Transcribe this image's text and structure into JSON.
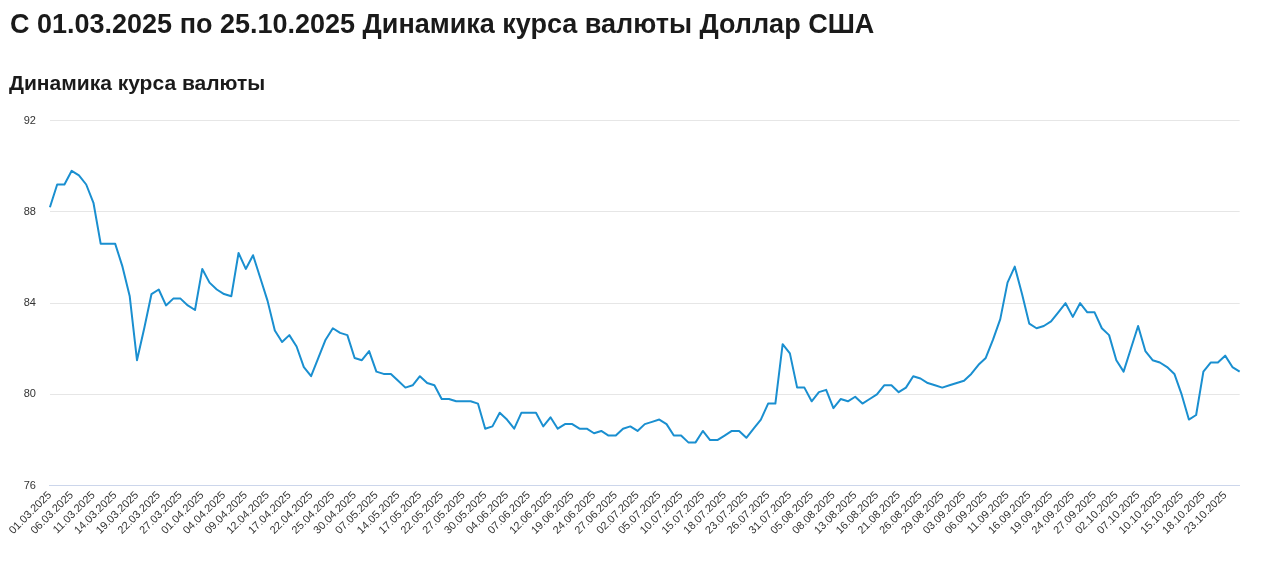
{
  "chart_data": {
    "type": "line",
    "title": "С 01.03.2025 по 25.10.2025 Динамика курса валюты Доллар США",
    "subtitle": "Динамика курса валюты",
    "categories": [
      "01.03.2025",
      null,
      null,
      "06.03.2025",
      null,
      null,
      "11.03.2025",
      null,
      null,
      "14.03.2025",
      null,
      null,
      "19.03.2025",
      null,
      null,
      "22.03.2025",
      null,
      null,
      "27.03.2025",
      null,
      null,
      "01.04.2025",
      null,
      null,
      "04.04.2025",
      null,
      null,
      "09.04.2025",
      null,
      null,
      "12.04.2025",
      null,
      null,
      "17.04.2025",
      null,
      null,
      "22.04.2025",
      null,
      null,
      "25.04.2025",
      null,
      null,
      "30.04.2025",
      null,
      null,
      "07.05.2025",
      null,
      null,
      "14.05.2025",
      null,
      null,
      "17.05.2025",
      null,
      null,
      "22.05.2025",
      null,
      null,
      "27.05.2025",
      null,
      null,
      "30.05.2025",
      null,
      null,
      "04.06.2025",
      null,
      null,
      "07.06.2025",
      null,
      null,
      "12.06.2025",
      null,
      null,
      "19.06.2025",
      null,
      null,
      "24.06.2025",
      null,
      null,
      "27.06.2025",
      null,
      null,
      "02.07.2025",
      null,
      null,
      "05.07.2025",
      null,
      null,
      "10.07.2025",
      null,
      null,
      "15.07.2025",
      null,
      null,
      "18.07.2025",
      null,
      null,
      "23.07.2025",
      null,
      null,
      "26.07.2025",
      null,
      null,
      "31.07.2025",
      null,
      null,
      "05.08.2025",
      null,
      null,
      "08.08.2025",
      null,
      null,
      "13.08.2025",
      null,
      null,
      "16.08.2025",
      null,
      null,
      "21.08.2025",
      null,
      null,
      "26.08.2025",
      null,
      null,
      "29.08.2025",
      null,
      null,
      "03.09.2025",
      null,
      null,
      "06.09.2025",
      null,
      null,
      "11.09.2025",
      null,
      null,
      "16.09.2025",
      null,
      null,
      "19.09.2025",
      null,
      null,
      "24.09.2025",
      null,
      null,
      "27.09.2025",
      null,
      null,
      "02.10.2025",
      null,
      null,
      "07.10.2025",
      null,
      null,
      "10.10.2025",
      null,
      null,
      "15.10.2025",
      null,
      null,
      "18.10.2025",
      null,
      null,
      "23.10.2025",
      null,
      null
    ],
    "series": [
      {
        "color": "#1a8fd0",
        "values": [
          88.2,
          89.2,
          89.2,
          89.8,
          89.6,
          89.2,
          88.4,
          86.6,
          86.6,
          86.6,
          85.6,
          84.3,
          81.5,
          82.9,
          84.4,
          84.6,
          83.9,
          84.2,
          84.2,
          83.9,
          83.7,
          85.5,
          84.9,
          84.6,
          84.4,
          84.3,
          86.2,
          85.5,
          86.1,
          85.1,
          84.1,
          82.8,
          82.3,
          82.6,
          82.1,
          81.2,
          80.8,
          81.6,
          82.4,
          82.9,
          82.7,
          82.6,
          81.6,
          81.5,
          81.9,
          81.0,
          80.9,
          80.9,
          80.6,
          80.3,
          80.4,
          80.8,
          80.5,
          80.4,
          79.8,
          79.8,
          79.7,
          79.7,
          79.7,
          79.6,
          78.5,
          78.6,
          79.2,
          78.9,
          78.5,
          79.2,
          79.2,
          79.2,
          78.6,
          79.0,
          78.5,
          78.7,
          78.7,
          78.5,
          78.5,
          78.3,
          78.4,
          78.2,
          78.2,
          78.5,
          78.6,
          78.4,
          78.7,
          78.8,
          78.9,
          78.7,
          78.2,
          78.2,
          77.9,
          77.9,
          78.4,
          78.0,
          78.0,
          78.2,
          78.4,
          78.4,
          78.1,
          78.5,
          78.9,
          79.6,
          79.6,
          82.2,
          81.8,
          80.3,
          80.3,
          79.7,
          80.1,
          80.2,
          79.4,
          79.8,
          79.7,
          79.9,
          79.6,
          79.8,
          80.0,
          80.4,
          80.4,
          80.1,
          80.3,
          80.8,
          80.7,
          80.5,
          80.4,
          80.3,
          80.4,
          80.5,
          80.6,
          80.9,
          81.3,
          81.6,
          82.4,
          83.3,
          84.9,
          85.6,
          84.4,
          83.1,
          82.9,
          83.0,
          83.2,
          83.6,
          84.0,
          83.4,
          84.0,
          83.6,
          83.6,
          82.9,
          82.6,
          81.5,
          81.0,
          82.0,
          83.0,
          81.9,
          81.5,
          81.4,
          81.2,
          80.9,
          80.0,
          78.9,
          79.1,
          81.0,
          81.4,
          81.4,
          81.7,
          81.2,
          81.0
        ]
      }
    ],
    "ylim": [
      76,
      92
    ],
    "yticks": [
      76,
      80,
      84,
      88,
      92
    ],
    "grid": "y",
    "legend": false,
    "marker": "none",
    "line_style": "solid"
  }
}
